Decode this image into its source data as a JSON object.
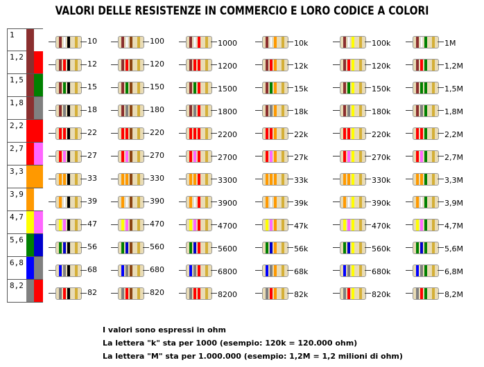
{
  "title": "VALORI DELLE RESISTENZE IN COMMERCIO E LORO CODICE A COLORI",
  "series": [
    {
      "base": "1",
      "colors": [
        "#8b2f2f",
        "#ffffff"
      ]
    },
    {
      "base": "1,2",
      "colors": [
        "#8b2f2f",
        "#ff0000"
      ]
    },
    {
      "base": "1,5",
      "colors": [
        "#8b2f2f",
        "#008000"
      ]
    },
    {
      "base": "1,8",
      "colors": [
        "#8b2f2f",
        "#808080"
      ]
    },
    {
      "base": "2,2",
      "colors": [
        "#ff0000",
        "#ff0000"
      ]
    },
    {
      "base": "2,7",
      "colors": [
        "#ff0000",
        "#ff66ff"
      ]
    },
    {
      "base": "3,3",
      "colors": [
        "#ff9900",
        "#ff9900"
      ]
    },
    {
      "base": "3,9",
      "colors": [
        "#ff9900",
        "#ffffff"
      ]
    },
    {
      "base": "4,7",
      "colors": [
        "#ffff00",
        "#ff66ff"
      ]
    },
    {
      "base": "5,6",
      "colors": [
        "#008000",
        "#0000cc"
      ]
    },
    {
      "base": "6,8",
      "colors": [
        "#0000ff",
        "#808080"
      ]
    },
    {
      "base": "8,2",
      "colors": [
        "#808080",
        "#ff0000"
      ]
    }
  ],
  "multipliers": [
    "#000000",
    "#8b4513",
    "#ff0000",
    "#ff9900",
    "#ffff00",
    "#008000"
  ],
  "band_colors": {
    "body": "#e9dcb6",
    "tolerance": "#d4af37"
  },
  "values": [
    [
      "10",
      "100",
      "1000",
      "10k",
      "100k",
      "1M"
    ],
    [
      "12",
      "120",
      "1200",
      "12k",
      "120k",
      "1,2M"
    ],
    [
      "15",
      "150",
      "1500",
      "15k",
      "150k",
      "1,5M"
    ],
    [
      "18",
      "180",
      "1800",
      "18k",
      "180k",
      "1,8M"
    ],
    [
      "22",
      "220",
      "2200",
      "22k",
      "220k",
      "2,2M"
    ],
    [
      "27",
      "270",
      "2700",
      "27k",
      "270k",
      "2,7M"
    ],
    [
      "33",
      "330",
      "3300",
      "33k",
      "330k",
      "3,3M"
    ],
    [
      "39",
      "390",
      "3900",
      "39k",
      "390k",
      "3,9M"
    ],
    [
      "47",
      "470",
      "4700",
      "47k",
      "470k",
      "4,7M"
    ],
    [
      "56",
      "560",
      "5600",
      "56k",
      "560k",
      "5,6M"
    ],
    [
      "68",
      "680",
      "6800",
      "68k",
      "680k",
      "6,8M"
    ],
    [
      "82",
      "820",
      "8200",
      "82k",
      "820k",
      "8,2M"
    ]
  ],
  "notes": [
    "I valori sono espressi in ohm",
    "La lettera \"k\" sta per 1000 (esempio: 120k = 120.000 ohm)",
    "La lettera \"M\" sta per 1.000.000 (esempio: 1,2M = 1,2 milioni di ohm)"
  ]
}
